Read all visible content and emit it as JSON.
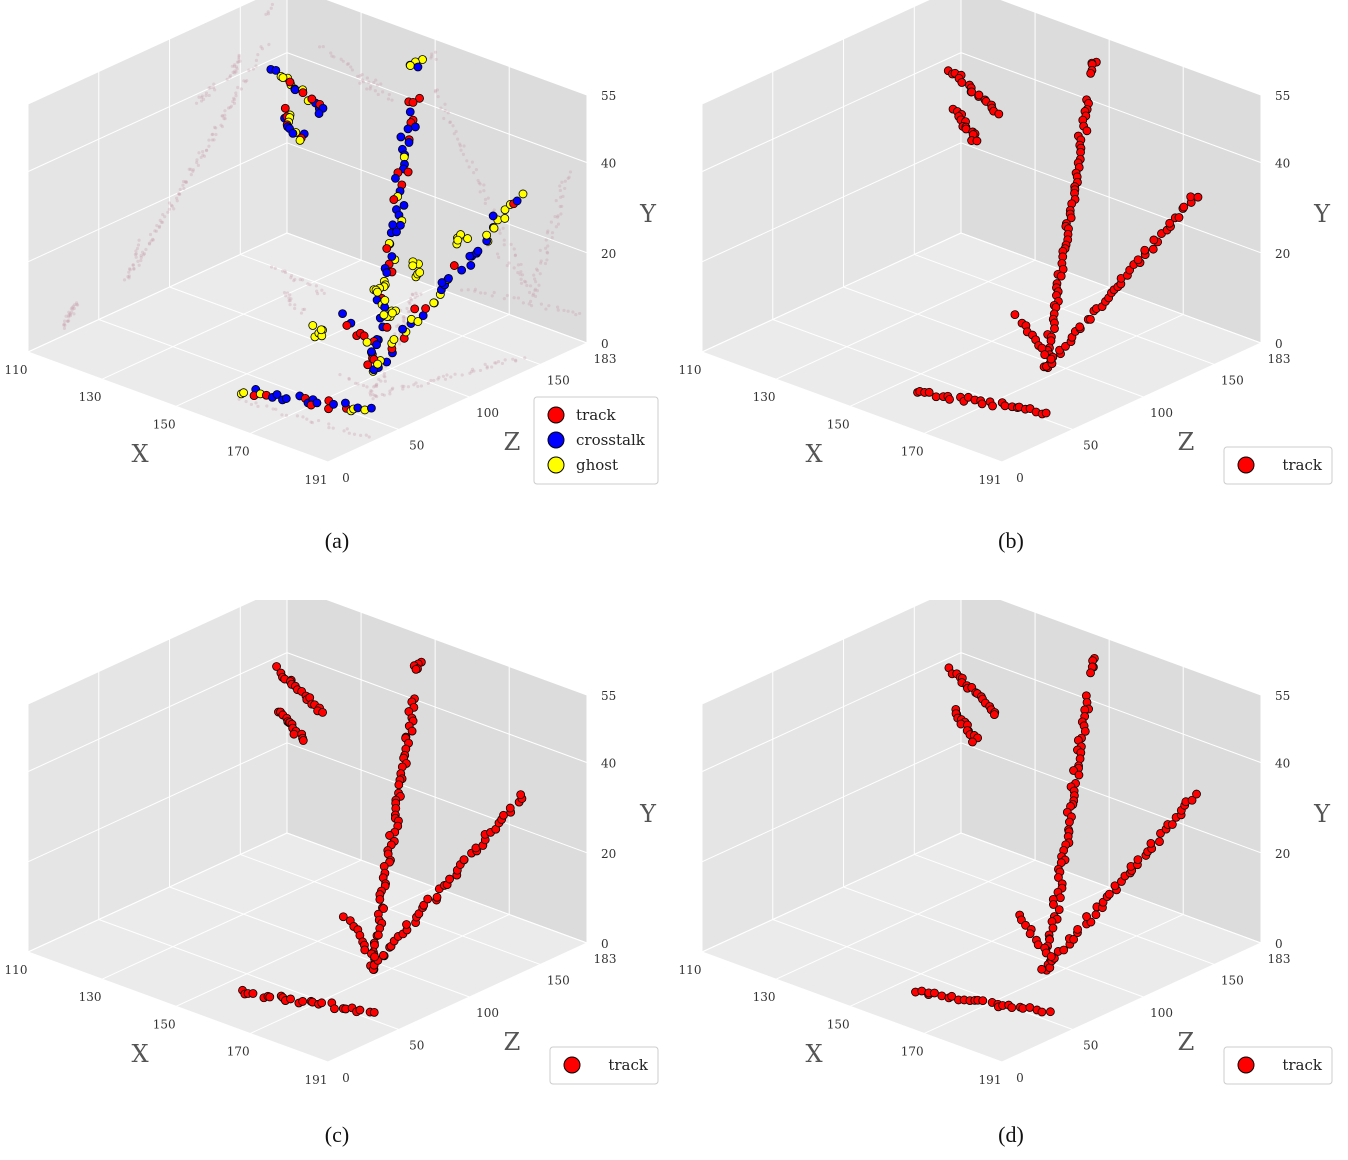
{
  "captions": [
    "(a)",
    "(b)",
    "(c)",
    "(d)"
  ],
  "colors": {
    "track": "#ff0000",
    "crosstalk": "#0000ff",
    "ghost": "#ffff00",
    "pane_back": "#e5e5e5",
    "pane_side": "#dcdcdc",
    "pane_floor": "#ebebeb",
    "grid": "#ffffff"
  },
  "chart_data": [
    {
      "type": "scatter",
      "panel": "a",
      "xlabel": "X",
      "ylabel": "Y",
      "zlabel": "Z",
      "xticks": [
        "110",
        "130",
        "150",
        "170",
        "191"
      ],
      "yticks": [
        "0",
        "20",
        "40",
        "55"
      ],
      "zticks": [
        "0",
        "50",
        "100",
        "150",
        "183"
      ],
      "xlim": [
        110,
        191
      ],
      "ylim": [
        0,
        55
      ],
      "zlim": [
        0,
        183
      ],
      "grid": true,
      "legend_position": "bottom-right",
      "legend": [
        "track",
        "crosstalk",
        "ghost"
      ],
      "series": [
        {
          "name": "track"
        },
        {
          "name": "crosstalk"
        },
        {
          "name": "ghost"
        }
      ]
    },
    {
      "type": "scatter",
      "panel": "b",
      "xlabel": "X",
      "ylabel": "Y",
      "zlabel": "Z",
      "xticks": [
        "110",
        "130",
        "150",
        "170",
        "191"
      ],
      "yticks": [
        "0",
        "20",
        "40",
        "55"
      ],
      "zticks": [
        "0",
        "50",
        "100",
        "150",
        "183"
      ],
      "xlim": [
        110,
        191
      ],
      "ylim": [
        0,
        55
      ],
      "zlim": [
        0,
        183
      ],
      "grid": true,
      "legend_position": "bottom-right",
      "legend": [
        "track"
      ],
      "series": [
        {
          "name": "track"
        }
      ]
    },
    {
      "type": "scatter",
      "panel": "c",
      "xlabel": "X",
      "ylabel": "Y",
      "zlabel": "Z",
      "xticks": [
        "110",
        "130",
        "150",
        "170",
        "191"
      ],
      "yticks": [
        "0",
        "20",
        "40",
        "55"
      ],
      "zticks": [
        "0",
        "50",
        "100",
        "150",
        "183"
      ],
      "xlim": [
        110,
        191
      ],
      "ylim": [
        0,
        55
      ],
      "zlim": [
        0,
        183
      ],
      "grid": true,
      "legend_position": "bottom-right",
      "legend": [
        "track"
      ],
      "series": [
        {
          "name": "track"
        }
      ]
    },
    {
      "type": "scatter",
      "panel": "d",
      "xlabel": "X",
      "ylabel": "Y",
      "zlabel": "Z",
      "xticks": [
        "110",
        "130",
        "150",
        "170",
        "191"
      ],
      "yticks": [
        "0",
        "20",
        "40",
        "55"
      ],
      "zticks": [
        "0",
        "50",
        "100",
        "150",
        "183"
      ],
      "xlim": [
        110,
        191
      ],
      "ylim": [
        0,
        55
      ],
      "zlim": [
        0,
        183
      ],
      "grid": true,
      "legend_position": "bottom-right",
      "legend": [
        "track"
      ],
      "series": [
        {
          "name": "track"
        }
      ]
    }
  ]
}
